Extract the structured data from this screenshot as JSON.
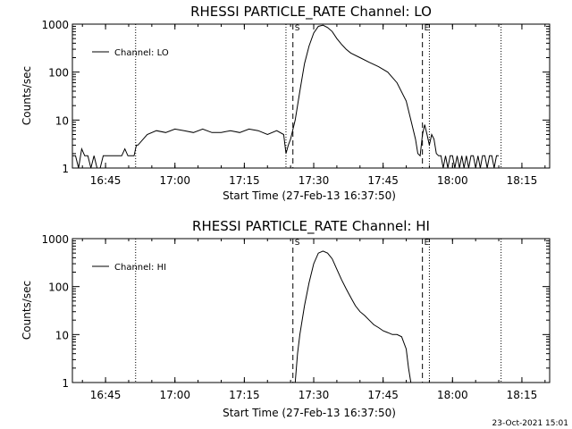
{
  "footer_stamp": "23-Oct-2021 15:01",
  "colors": {
    "line": "#000000",
    "background": "#ffffff"
  },
  "chart_data": [
    {
      "type": "line",
      "title": "RHESSI PARTICLE_RATE Channel: LO",
      "xlabel": "Start Time (27-Feb-13 16:37:50)",
      "ylabel": "Counts/sec",
      "yscale": "log",
      "ylim": [
        1,
        1000
      ],
      "xlim": [
        "16:37:50",
        "18:21:00"
      ],
      "x_ticks": [
        "16:45",
        "17:00",
        "17:15",
        "17:30",
        "17:45",
        "18:00",
        "18:15"
      ],
      "y_ticks": [
        "1",
        "10",
        "100",
        "1000"
      ],
      "legend": {
        "label": "Channel: LO",
        "placement": "top-left"
      },
      "markers": [
        {
          "label": "S",
          "time": "17:25:30",
          "style": "dashed"
        },
        {
          "label": "E",
          "time": "17:53:30",
          "style": "dashed"
        }
      ],
      "dotted_lines": [
        "16:51:30",
        "17:24:00",
        "17:55:00",
        "18:10:30"
      ],
      "series": [
        {
          "x": [
            "16:37:50",
            "16:38:30",
            "16:39:10",
            "16:39:50",
            "16:40:30",
            "16:41:10",
            "16:41:50",
            "16:42:30",
            "16:43:10",
            "16:43:50",
            "16:44:30",
            "16:45:10",
            "16:45:50",
            "16:46:30",
            "16:47:10",
            "16:47:50",
            "16:48:30",
            "16:49:10",
            "16:49:50",
            "16:50:30",
            "16:51:10",
            "16:51:40",
            "16:52:00",
            "16:54:00",
            "16:56:00",
            "16:58:00",
            "17:00:00",
            "17:02:00",
            "17:04:00",
            "17:06:00",
            "17:08:00",
            "17:10:00",
            "17:12:00",
            "17:14:00",
            "17:16:00",
            "17:18:00",
            "17:20:00",
            "17:22:00",
            "17:23:30",
            "17:24:00",
            "17:24:30",
            "17:25:00",
            "17:26:00",
            "17:27:00",
            "17:28:00",
            "17:29:00",
            "17:30:00",
            "17:31:00",
            "17:32:00",
            "17:33:00",
            "17:34:00",
            "17:35:00",
            "17:36:00",
            "17:37:00",
            "17:38:00",
            "17:40:00",
            "17:42:00",
            "17:44:00",
            "17:46:00",
            "17:48:00",
            "17:50:00",
            "17:51:00",
            "17:52:00",
            "17:52:30",
            "17:53:00",
            "17:53:30",
            "17:54:00",
            "17:54:30",
            "17:55:00",
            "17:55:30",
            "17:56:00",
            "17:56:30",
            "17:57:00",
            "17:57:30",
            "17:58:00",
            "17:58:30",
            "17:59:00",
            "17:59:30",
            "18:00:00",
            "18:00:30",
            "18:01:00",
            "18:01:30",
            "18:02:00",
            "18:02:30",
            "18:03:00",
            "18:03:30",
            "18:04:00",
            "18:04:30",
            "18:05:00",
            "18:05:30",
            "18:06:00",
            "18:06:30",
            "18:07:00",
            "18:07:30",
            "18:08:00",
            "18:08:30",
            "18:09:00",
            "18:09:30",
            "18:10:00"
          ],
          "y": [
            1.8,
            1.8,
            1,
            2.5,
            1.8,
            1.8,
            1,
            1.8,
            1,
            1,
            1.8,
            1.8,
            1.8,
            1.8,
            1.8,
            1.8,
            1.8,
            2.5,
            1.8,
            1.8,
            1.8,
            3,
            3,
            5,
            6,
            5.5,
            6.5,
            6,
            5.5,
            6.5,
            5.5,
            5.5,
            6,
            5.5,
            6.5,
            6,
            5,
            6,
            5,
            2,
            3,
            4,
            10,
            40,
            150,
            350,
            650,
            900,
            950,
            850,
            700,
            500,
            380,
            300,
            250,
            200,
            160,
            130,
            100,
            60,
            25,
            10,
            4,
            2,
            1.8,
            5,
            8,
            5,
            3,
            5,
            4,
            2,
            1.8,
            1.8,
            1,
            1.8,
            1,
            1.8,
            1.8,
            1,
            1.8,
            1,
            1.8,
            1,
            1.8,
            1,
            1.8,
            1.8,
            1,
            1.8,
            1,
            1.8,
            1.8,
            1,
            1.8,
            1.8,
            1,
            1.8,
            1.8
          ]
        }
      ]
    },
    {
      "type": "line",
      "title": "RHESSI PARTICLE_RATE Channel: HI",
      "xlabel": "Start Time (27-Feb-13 16:37:50)",
      "ylabel": "Counts/sec",
      "yscale": "log",
      "ylim": [
        1,
        1000
      ],
      "xlim": [
        "16:37:50",
        "18:21:00"
      ],
      "x_ticks": [
        "16:45",
        "17:00",
        "17:15",
        "17:30",
        "17:45",
        "18:00",
        "18:15"
      ],
      "y_ticks": [
        "1",
        "10",
        "100",
        "1000"
      ],
      "legend": {
        "label": "Channel: HI",
        "placement": "top-left"
      },
      "markers": [
        {
          "label": "S",
          "time": "17:25:30",
          "style": "dashed"
        },
        {
          "label": "E",
          "time": "17:53:30",
          "style": "dashed"
        }
      ],
      "dotted_lines": [
        "16:51:30",
        "17:55:00",
        "18:10:30"
      ],
      "series": [
        {
          "x": [
            "17:26:00",
            "17:26:30",
            "17:27:00",
            "17:28:00",
            "17:29:00",
            "17:30:00",
            "17:31:00",
            "17:32:00",
            "17:33:00",
            "17:34:00",
            "17:35:00",
            "17:36:00",
            "17:37:00",
            "17:38:00",
            "17:39:00",
            "17:40:00",
            "17:41:00",
            "17:42:00",
            "17:43:00",
            "17:44:00",
            "17:45:00",
            "17:46:00",
            "17:47:00",
            "17:48:00",
            "17:49:00",
            "17:50:00",
            "17:50:30",
            "17:51:00"
          ],
          "y": [
            1,
            4,
            10,
            40,
            120,
            300,
            500,
            550,
            500,
            380,
            230,
            140,
            90,
            60,
            40,
            30,
            25,
            20,
            16,
            14,
            12,
            11,
            10,
            10,
            9,
            5,
            2,
            1
          ]
        }
      ]
    }
  ]
}
